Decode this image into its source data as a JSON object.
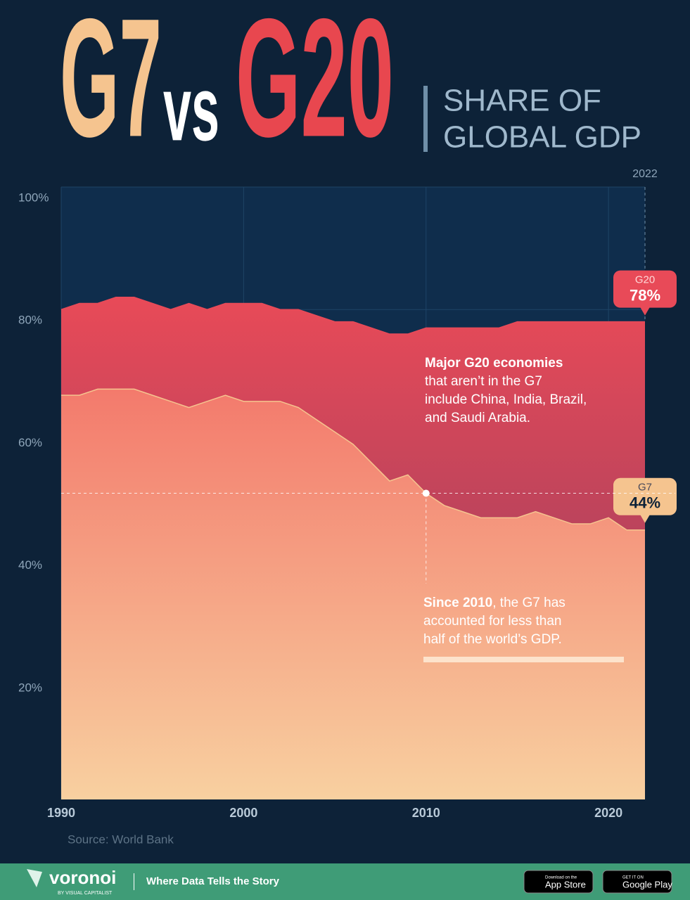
{
  "title": {
    "g7": "G7",
    "vs": "vs",
    "g20": "G20",
    "subtitle_lines": [
      "SHARE OF",
      "GLOBAL GDP"
    ]
  },
  "chart_data": {
    "type": "area",
    "x": [
      1990,
      1991,
      1992,
      1993,
      1994,
      1995,
      1996,
      1997,
      1998,
      1999,
      2000,
      2001,
      2002,
      2003,
      2004,
      2005,
      2006,
      2007,
      2008,
      2009,
      2010,
      2011,
      2012,
      2013,
      2014,
      2015,
      2016,
      2017,
      2018,
      2019,
      2020,
      2021,
      2022
    ],
    "series": [
      {
        "name": "G20",
        "color": "#e84a58",
        "values": [
          80,
          81,
          81,
          82,
          82,
          81,
          80,
          81,
          80,
          81,
          81,
          81,
          80,
          80,
          79,
          78,
          78,
          77,
          76,
          76,
          77,
          77,
          77,
          77,
          77,
          78,
          78,
          78,
          78,
          78,
          78,
          78,
          78
        ],
        "value_labels": [
          null,
          null,
          null,
          null,
          null,
          null,
          null,
          null,
          null,
          null,
          null,
          null,
          null,
          null,
          null,
          null,
          null,
          null,
          null,
          null,
          null,
          null,
          null,
          null,
          null,
          null,
          null,
          null,
          null,
          null,
          null,
          null,
          "78%"
        ]
      },
      {
        "name": "G7",
        "color": "#f5c48f",
        "values": [
          66,
          66,
          67,
          67,
          67,
          66,
          65,
          64,
          65,
          66,
          65,
          65,
          65,
          64,
          62,
          60,
          58,
          55,
          52,
          53,
          50,
          48,
          47,
          46,
          46,
          46,
          47,
          46,
          45,
          45,
          46,
          44,
          44
        ],
        "value_labels": [
          null,
          null,
          null,
          null,
          null,
          null,
          null,
          null,
          null,
          null,
          null,
          null,
          null,
          null,
          null,
          null,
          null,
          null,
          null,
          null,
          null,
          null,
          null,
          null,
          null,
          null,
          null,
          null,
          null,
          null,
          null,
          null,
          "44%"
        ]
      }
    ],
    "xlim": [
      1990,
      2022
    ],
    "ylim": [
      0,
      100
    ],
    "xticks": [
      1990,
      2000,
      2010,
      2020
    ],
    "yticks": [
      {
        "value": 20,
        "label": "20%"
      },
      {
        "value": 40,
        "label": "40%"
      },
      {
        "value": 60,
        "label": "60%"
      },
      {
        "value": 80,
        "label": "80%"
      },
      {
        "value": 100,
        "label": "100%"
      }
    ],
    "x_marker": 2022,
    "annotations": [
      {
        "bold": "Major G20 economies",
        "lines": [
          "that aren’t in the G7",
          "include China, India, Brazil,",
          "and Saudi Arabia."
        ]
      },
      {
        "bold": "Since 2010",
        "lines": [
          ", the G7 has",
          "accounted for less than",
          "half of the world’s GDP."
        ]
      }
    ],
    "source": "Source: World Bank"
  },
  "footer": {
    "brand": "voronoi",
    "byline": "BY VISUAL CAPITALIST",
    "tagline": "Where Data Tells the Story",
    "app_store": [
      "Download on the",
      "App Store"
    ],
    "google_play": [
      "GET IT ON",
      "Google Play"
    ]
  }
}
